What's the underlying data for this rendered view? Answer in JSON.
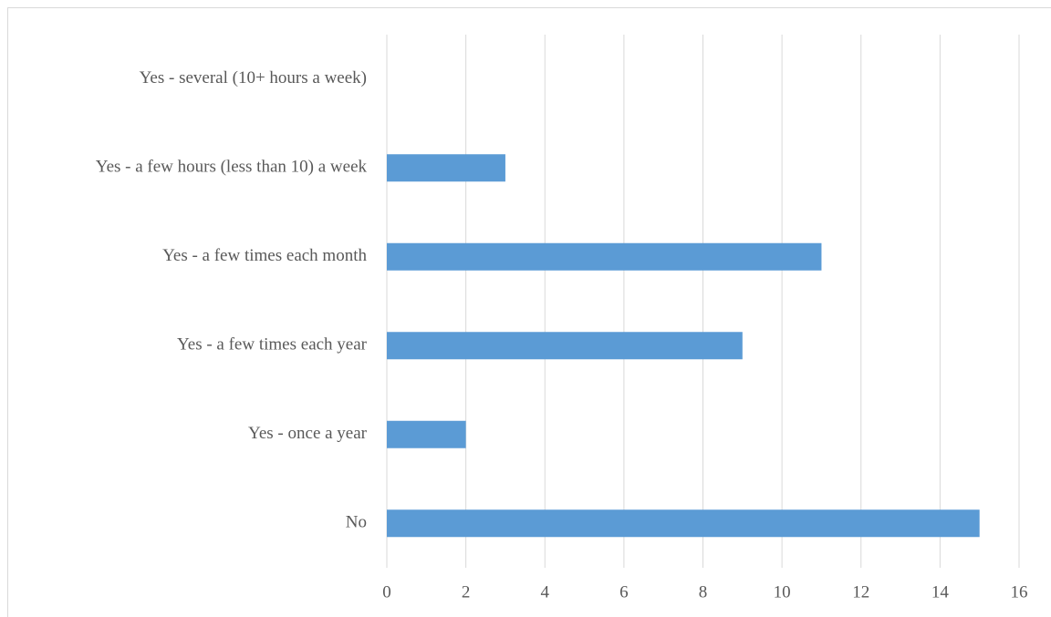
{
  "chart_data": {
    "type": "barh",
    "categories": [
      "Yes - several (10+ hours a week)",
      "Yes - a few hours (less than 10) a week",
      "Yes - a few times each month",
      "Yes - a few times each year",
      "Yes - once a year",
      "No"
    ],
    "values": [
      0,
      3,
      11,
      9,
      2,
      15
    ],
    "color": "#5b9bd5",
    "xlim": [
      0,
      16
    ],
    "xticks": [
      0,
      2,
      4,
      6,
      8,
      10,
      12,
      14,
      16
    ],
    "grid": true
  }
}
